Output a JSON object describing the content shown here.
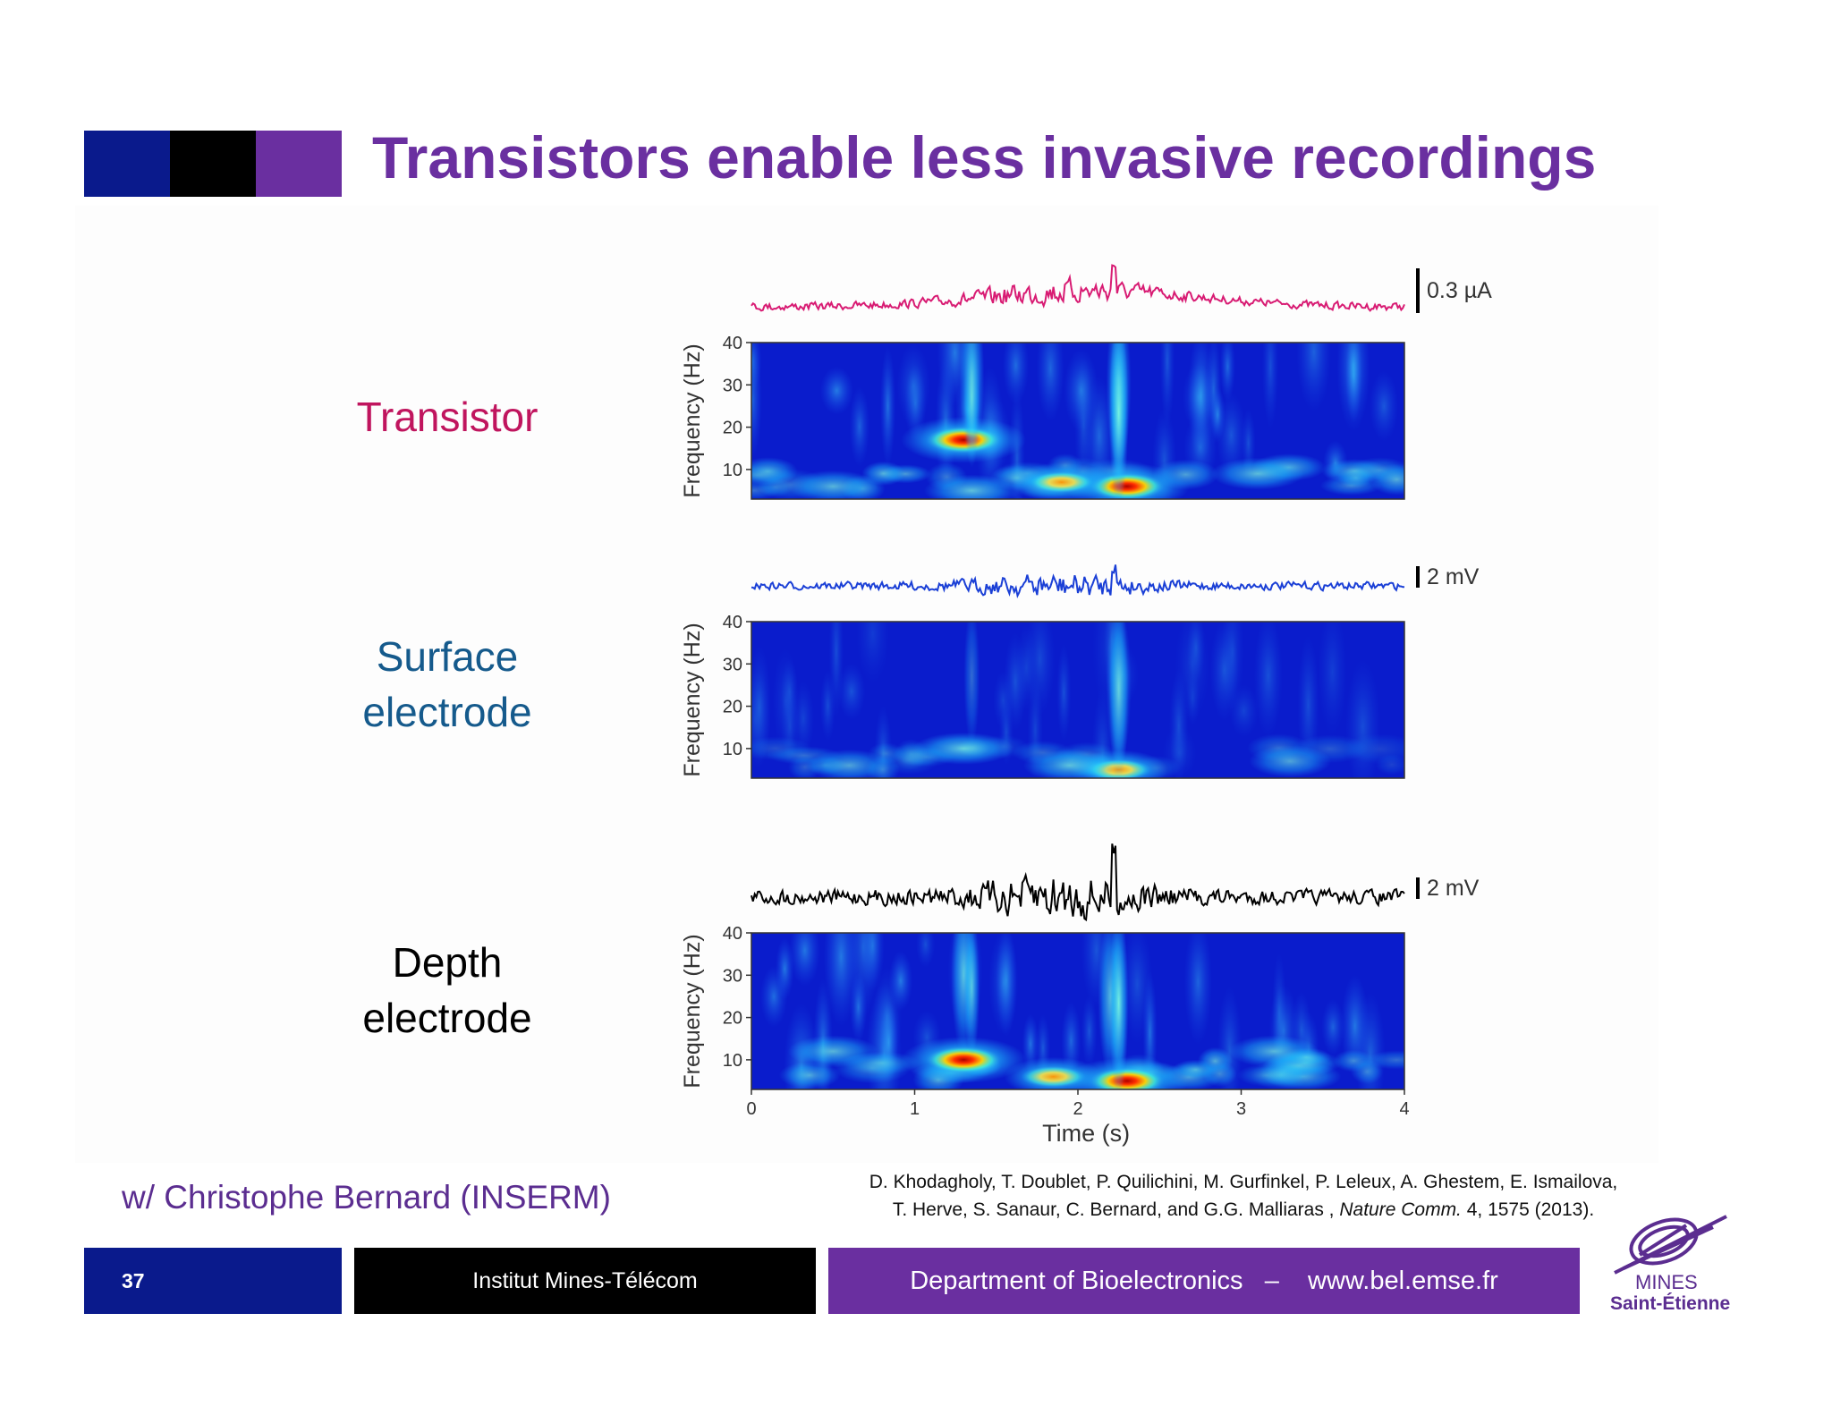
{
  "header": {
    "title": "Transistors enable less invasive recordings",
    "blocks": [
      "#0a1a8c",
      "#000000",
      "#6a2fa0"
    ]
  },
  "rows": [
    {
      "label": "Transistor",
      "color": "#c0155e",
      "trace_color": "#d81b73",
      "scale": "0.3 µA"
    },
    {
      "label": "Surface\nelectrode",
      "color": "#155a8c",
      "trace_color": "#1a3fd6",
      "scale": "2 mV"
    },
    {
      "label": "Depth\nelectrode",
      "color": "#000000",
      "trace_color": "#000000",
      "scale": "2 mV"
    }
  ],
  "chart_data": {
    "type": "heatmap",
    "panels": [
      "Transistor",
      "Surface electrode",
      "Depth electrode"
    ],
    "xlabel": "Time (s)",
    "ylabel": "Frequency (Hz)",
    "x_ticks": [
      "0",
      "1",
      "2",
      "3",
      "4"
    ],
    "y_ticks": [
      "10",
      "20",
      "30",
      "40"
    ],
    "xlim": [
      0,
      4
    ],
    "ylim": [
      3,
      40
    ],
    "hotspots": [
      [
        {
          "t": 1.3,
          "f": 17,
          "amp": 1.0
        },
        {
          "t": 2.3,
          "f": 6,
          "amp": 1.1
        },
        {
          "t": 1.9,
          "f": 7,
          "amp": 0.75
        },
        {
          "t": 1.35,
          "f": 5,
          "amp": 0.45
        },
        {
          "t": 2.25,
          "f": 30,
          "amp": 0.5
        },
        {
          "t": 1.35,
          "f": 32,
          "amp": 0.45
        },
        {
          "t": 0.5,
          "f": 6,
          "amp": 0.35
        },
        {
          "t": 3.1,
          "f": 9,
          "amp": 0.4
        }
      ],
      [
        {
          "t": 1.3,
          "f": 10,
          "amp": 0.55
        },
        {
          "t": 2.25,
          "f": 5,
          "amp": 0.8
        },
        {
          "t": 1.95,
          "f": 6,
          "amp": 0.4
        },
        {
          "t": 2.25,
          "f": 25,
          "amp": 0.35
        },
        {
          "t": 0.6,
          "f": 6,
          "amp": 0.2
        },
        {
          "t": 3.3,
          "f": 7,
          "amp": 0.2
        }
      ],
      [
        {
          "t": 1.3,
          "f": 10,
          "amp": 1.0
        },
        {
          "t": 2.3,
          "f": 5,
          "amp": 1.1
        },
        {
          "t": 1.85,
          "f": 6,
          "amp": 0.7
        },
        {
          "t": 2.2,
          "f": 25,
          "amp": 0.5
        },
        {
          "t": 1.3,
          "f": 30,
          "amp": 0.4
        },
        {
          "t": 0.5,
          "f": 12,
          "amp": 0.35
        },
        {
          "t": 3.2,
          "f": 12,
          "amp": 0.35
        }
      ]
    ]
  },
  "citation": {
    "line1": "D. Khodagholy, T. Doublet, P. Quilichini, M. Gurfinkel, P. Leleux, A. Ghestem, E. Ismailova,",
    "line2_prefix": "T. Herve, S. Sanaur, C. Bernard, and G.G. Malliaras , ",
    "journal": "Nature Comm.",
    "line2_suffix": " 4, 1575 (2013)."
  },
  "collaboration": "w/ Christophe Bernard (INSERM)",
  "footer": {
    "page_number": "37",
    "institute": "Institut Mines-Télécom",
    "department": "Department of Bioelectronics   –    www.bel.emse.fr"
  },
  "logo": {
    "line1": "MINES",
    "line2": "Saint-Étienne"
  }
}
